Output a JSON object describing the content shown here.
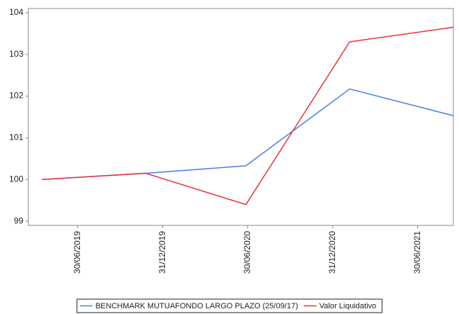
{
  "chart_data": {
    "type": "line",
    "x": [
      2019.29,
      2019.9,
      2020.49,
      2021.1,
      2021.71
    ],
    "series": [
      {
        "name": "BENCHMARK MUTUAFONDO LARGO PLAZO (25/09/17)",
        "color": "#4a7fe6",
        "values": [
          100.0,
          100.15,
          100.33,
          102.17,
          101.53
        ]
      },
      {
        "name": "Valor Liquidativo",
        "color": "#e8323c",
        "values": [
          100.0,
          100.15,
          99.4,
          103.3,
          103.65
        ]
      }
    ],
    "xlim": [
      2019.21,
      2021.71
    ],
    "xticks": [
      {
        "value": 2019.5,
        "label": "30/06/2019"
      },
      {
        "value": 2020.0,
        "label": "31/12/2019"
      },
      {
        "value": 2020.5,
        "label": "30/06/2020"
      },
      {
        "value": 2021.0,
        "label": "31/12/2020"
      },
      {
        "value": 2021.5,
        "label": "30/06/2021"
      }
    ],
    "ylim": [
      98.9,
      104.1
    ],
    "yticks": [
      99,
      100,
      101,
      102,
      103,
      104
    ],
    "legend": "bottom"
  }
}
